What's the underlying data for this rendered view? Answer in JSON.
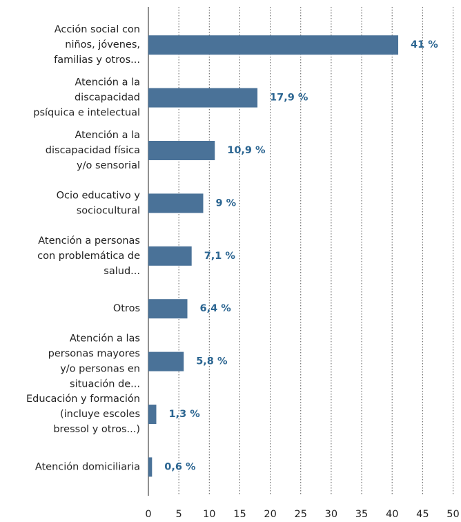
{
  "chart_data": {
    "type": "barh",
    "categories": [
      "Acción social con\nniños, jóvenes,\nfamilias y otros...",
      "Atención a la\ndiscapacidad\npsíquica e intelectual",
      "Atención a la\ndiscapacidad física\ny/o sensorial",
      "Ocio educativo y\nsociocultural",
      "Atención a personas\ncon problemática de\nsalud...",
      "Otros",
      "Atención a las\npersonas mayores\ny/o personas en\nsituación de...",
      "Educación y formación\n(incluye escoles\nbressol y otros...)",
      "Atención domiciliaria"
    ],
    "values": [
      41,
      17.9,
      10.9,
      9,
      7.1,
      6.4,
      5.8,
      1.3,
      0.6
    ],
    "value_labels": [
      "41 %",
      "17,9 %",
      "10,9 %",
      "9 %",
      "7,1 %",
      "6,4 %",
      "5,8 %",
      "1,3 %",
      "0,6 %"
    ],
    "color": "#4a7298",
    "label_color": "#2b6591",
    "xlim": [
      0,
      50
    ],
    "xticks": [
      0,
      5,
      10,
      15,
      20,
      25,
      30,
      35,
      40,
      45,
      50
    ],
    "grid": true
  }
}
